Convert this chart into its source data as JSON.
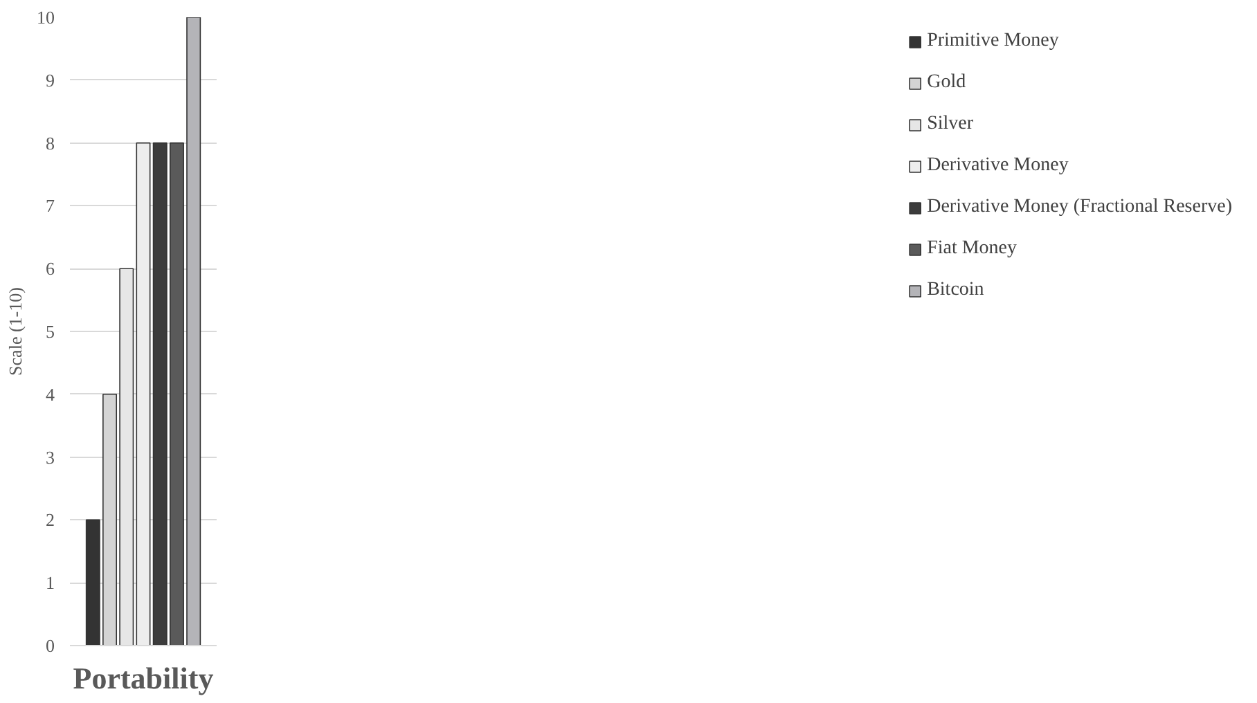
{
  "chart_data": {
    "type": "bar",
    "ylabel": "Scale (1-10)",
    "categories": [
      "Portability"
    ],
    "series": [
      {
        "name": "Primitive Money",
        "color": "#333333",
        "values": [
          2
        ]
      },
      {
        "name": "Gold",
        "color": "#d4d4d4",
        "values": [
          4
        ]
      },
      {
        "name": "Silver",
        "color": "#e6e6e6",
        "values": [
          6
        ]
      },
      {
        "name": "Derivative Money",
        "color": "#ededed",
        "values": [
          8
        ]
      },
      {
        "name": "Derivative Money (Fractional Reserve)",
        "color": "#3c3c3c",
        "values": [
          8
        ]
      },
      {
        "name": "Fiat Money",
        "color": "#5a5a5a",
        "values": [
          8
        ]
      },
      {
        "name": "Bitcoin",
        "color": "#b4b4b8",
        "values": [
          10
        ]
      }
    ],
    "ylim": [
      0,
      10
    ],
    "yticks": [
      0,
      1,
      2,
      3,
      4,
      5,
      6,
      7,
      8,
      9,
      10
    ],
    "grid": "y",
    "legend": "right"
  }
}
